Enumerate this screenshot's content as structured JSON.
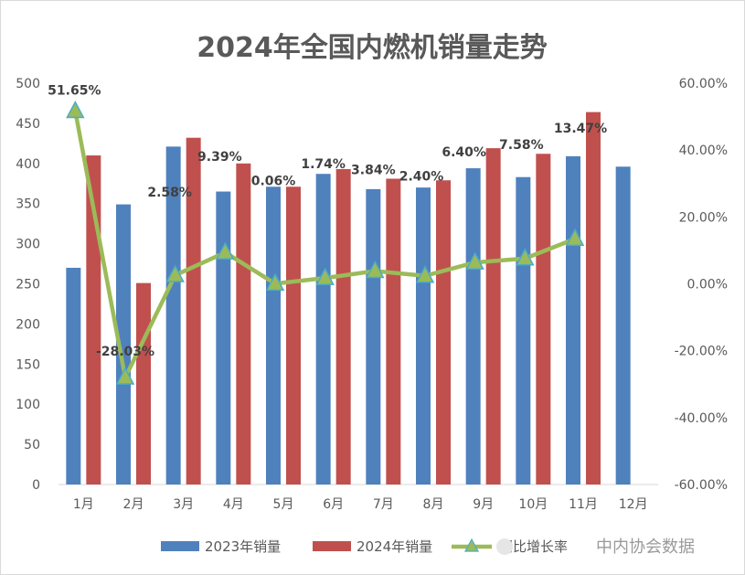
{
  "chart_data": {
    "type": "bar",
    "title": "2024年全国内燃机销量走势",
    "categories": [
      "1月",
      "2月",
      "3月",
      "4月",
      "5月",
      "6月",
      "7月",
      "8月",
      "9月",
      "10月",
      "11月",
      "12月"
    ],
    "series": [
      {
        "name": "2023年销量",
        "kind": "bar",
        "axis": "left",
        "color": "#4F81BD",
        "values": [
          270,
          349,
          421,
          365,
          371,
          387,
          368,
          370,
          394,
          383,
          409,
          396
        ]
      },
      {
        "name": "2024年销量",
        "kind": "bar",
        "axis": "left",
        "color": "#C0504D",
        "values": [
          410,
          251,
          432,
          400,
          371,
          393,
          381,
          379,
          419,
          412,
          464,
          null
        ]
      },
      {
        "name": "同比增长率",
        "kind": "line",
        "axis": "right",
        "color": "#9BBB59",
        "marker_color": "#9BBB59",
        "marker_edge": "#4BACC6",
        "values": [
          51.65,
          -28.03,
          2.58,
          9.39,
          0.06,
          1.74,
          3.84,
          2.4,
          6.4,
          7.58,
          13.47,
          null
        ],
        "labels": [
          "51.65%",
          "-28.03%",
          "2.58%",
          "9.39%",
          "0.06%",
          "1.74%",
          "3.84%",
          "2.40%",
          "6.40%",
          "7.58%",
          "13.47%",
          ""
        ]
      }
    ],
    "y_left": {
      "min": 0,
      "max": 500,
      "ticks": [
        "0",
        "50",
        "100",
        "150",
        "200",
        "250",
        "300",
        "350",
        "400",
        "450",
        "500"
      ]
    },
    "y_right": {
      "min": -60,
      "max": 60,
      "ticks": [
        "-60.00%",
        "-40.00%",
        "-20.00%",
        "0.00%",
        "20.00%",
        "40.00%",
        "60.00%"
      ]
    },
    "grid": false,
    "legend_position": "bottom"
  },
  "watermark": "中内协会数据"
}
